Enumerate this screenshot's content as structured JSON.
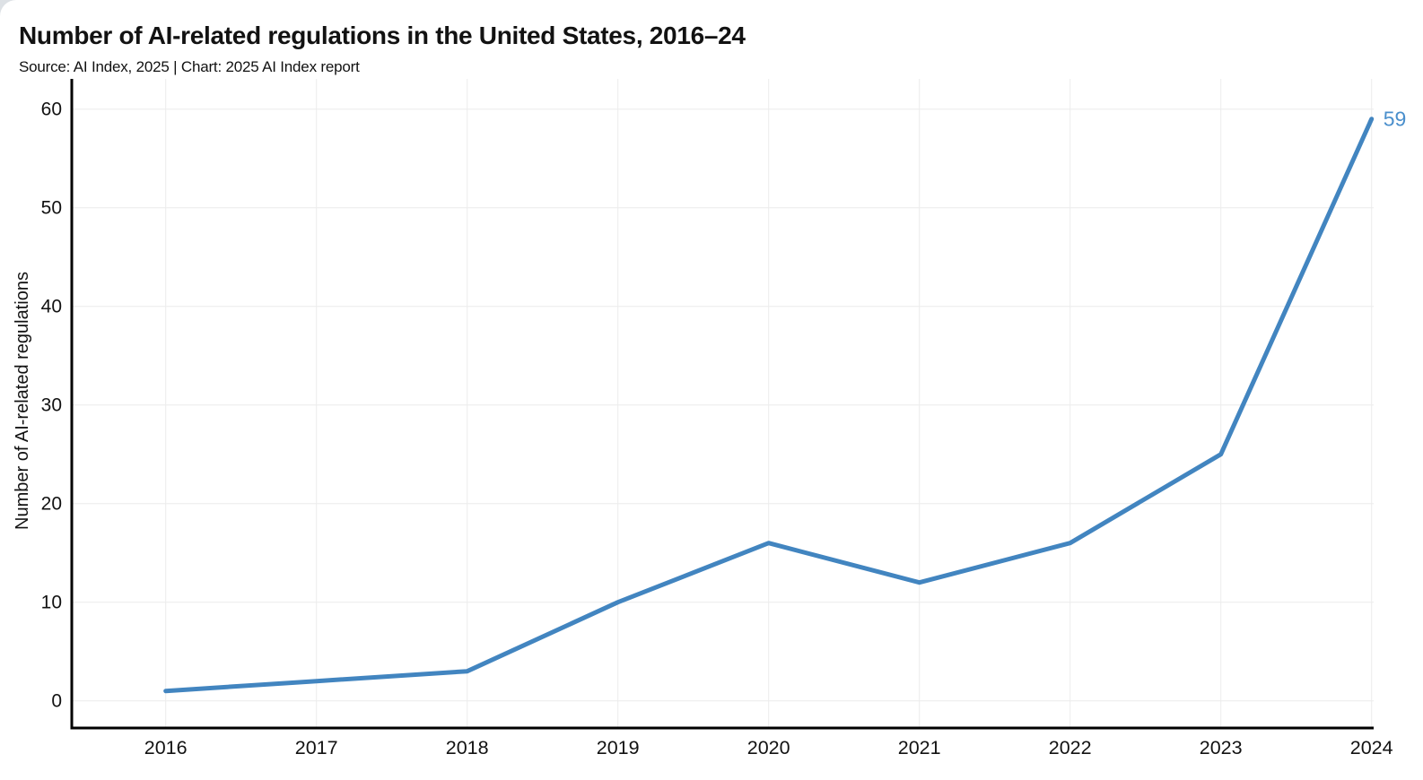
{
  "header": {
    "title": "Number of AI-related regulations in the United States, 2016–24",
    "source_line": "Source: AI Index, 2025 | Chart: 2025 AI Index report"
  },
  "chart_data": {
    "type": "line",
    "title": "Number of AI-related regulations in the United States, 2016–24",
    "categories": [
      "2016",
      "2017",
      "2018",
      "2019",
      "2020",
      "2021",
      "2022",
      "2023",
      "2024"
    ],
    "values": [
      1,
      2,
      3,
      10,
      16,
      12,
      16,
      25,
      59
    ],
    "xlabel": "",
    "ylabel": "Number of AI-related regulations",
    "ylim": [
      0,
      60
    ],
    "yticks": [
      0,
      10,
      20,
      30,
      40,
      50,
      60
    ],
    "grid": true,
    "legend": "none",
    "end_label": "59",
    "colors": {
      "line": "#4285c0",
      "end_label": "#4a8fcc",
      "axis": "#000000",
      "grid": "#ececec",
      "text": "#121212"
    }
  }
}
